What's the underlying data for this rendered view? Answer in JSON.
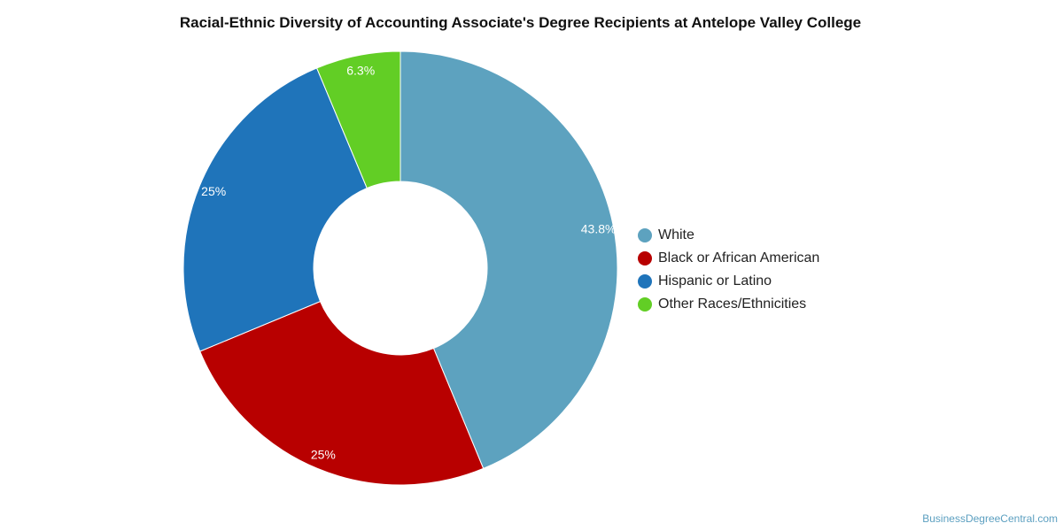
{
  "chart_data": {
    "type": "pie",
    "title": "Racial-Ethnic Diversity of Accounting Associate's Degree Recipients at Antelope Valley College",
    "donut": true,
    "legend_position": "right",
    "categories": [
      "White",
      "Black or African American",
      "Hispanic or Latino",
      "Other Races/Ethnicities"
    ],
    "values": [
      43.8,
      25,
      25,
      6.3
    ],
    "labels": [
      "43.8%",
      "25%",
      "25%",
      "6.3%"
    ],
    "colors": [
      "#5da2bf",
      "#b80000",
      "#1f74ba",
      "#62ce25"
    ]
  },
  "credit": "BusinessDegreeCentral.com"
}
